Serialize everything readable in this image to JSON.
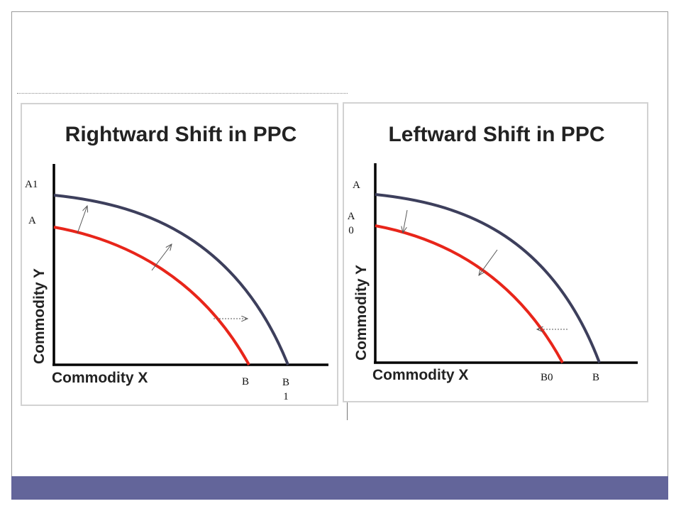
{
  "colors": {
    "footer": "#63659a",
    "outer_curve": "#3d3f5c",
    "inner_curve": "#e8251a",
    "axis": "#000000",
    "arrow": "#555555"
  },
  "left_diagram": {
    "title": "Rightward Shift in PPC",
    "x_axis_label": "Commodity X",
    "y_axis_label": "Commodity Y",
    "labels": {
      "a1": "A1",
      "a": "A",
      "b": "B",
      "b1": "B1"
    }
  },
  "right_diagram": {
    "title": "Leftward Shift in PPC",
    "x_axis_label": "Commodity X",
    "y_axis_label": "Commodity Y",
    "labels": {
      "a": "A",
      "a0": "A0",
      "b0": "B0",
      "b": "B"
    }
  }
}
